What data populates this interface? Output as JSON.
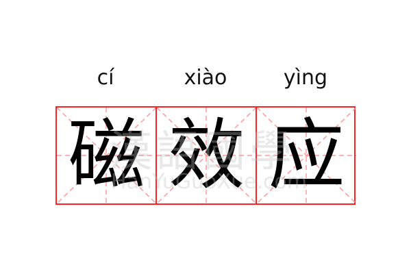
{
  "pinyin": [
    "cí",
    "xiào",
    "yìng"
  ],
  "characters": [
    "磁",
    "效",
    "应"
  ],
  "watermark": {
    "chinese": "漢語國學",
    "latin": "HanYuGuoXue.com"
  },
  "colors": {
    "border": "#ff2222",
    "guides": "#ff9a9a",
    "text": "#000000"
  }
}
